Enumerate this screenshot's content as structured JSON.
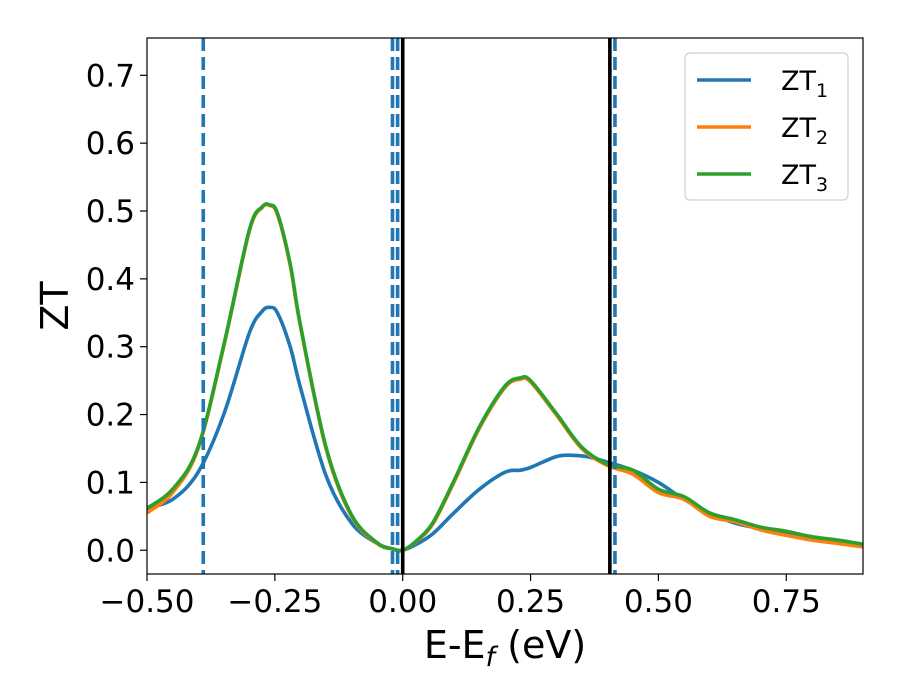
{
  "chart_data": {
    "type": "line",
    "title": "",
    "xlabel": "E-E",
    "xlabel_sub": "f",
    "xlabel_unit": " (eV)",
    "ylabel": "ZT",
    "xlim": [
      -0.5,
      0.9
    ],
    "ylim": [
      -0.035,
      0.755
    ],
    "xticks": [
      -0.5,
      -0.25,
      0.0,
      0.25,
      0.5,
      0.75
    ],
    "xtick_labels": [
      "−0.50",
      "−0.25",
      "0.00",
      "0.25",
      "0.50",
      "0.75"
    ],
    "yticks": [
      0.0,
      0.1,
      0.2,
      0.3,
      0.4,
      0.5,
      0.6,
      0.7
    ],
    "ytick_labels": [
      "0.0",
      "0.1",
      "0.2",
      "0.3",
      "0.4",
      "0.5",
      "0.6",
      "0.7"
    ],
    "grid": false,
    "legend_position": "top-right",
    "vlines_solid": [
      0.0,
      0.405
    ],
    "vlines_dashed": [
      -0.39,
      -0.02,
      -0.01,
      0.415
    ],
    "vline_solid_color": "#000000",
    "vline_dashed_color": "#1f77b4",
    "series": [
      {
        "name": "ZT",
        "name_sub": "1",
        "color": "#1f77b4",
        "x": [
          -0.5,
          -0.45,
          -0.4,
          -0.35,
          -0.3,
          -0.275,
          -0.26,
          -0.245,
          -0.22,
          -0.2,
          -0.15,
          -0.1,
          -0.05,
          -0.02,
          0.0,
          0.03,
          0.06,
          0.1,
          0.15,
          0.2,
          0.23,
          0.25,
          0.3,
          0.33,
          0.36,
          0.4,
          0.45,
          0.5,
          0.55,
          0.6,
          0.65,
          0.7,
          0.75,
          0.8,
          0.85,
          0.9
        ],
        "y": [
          0.062,
          0.075,
          0.115,
          0.2,
          0.32,
          0.352,
          0.358,
          0.35,
          0.3,
          0.24,
          0.11,
          0.04,
          0.01,
          0.002,
          0.0,
          0.01,
          0.025,
          0.055,
          0.09,
          0.115,
          0.118,
          0.122,
          0.138,
          0.14,
          0.138,
          0.13,
          0.118,
          0.1,
          0.075,
          0.055,
          0.04,
          0.032,
          0.025,
          0.018,
          0.012,
          0.008
        ]
      },
      {
        "name": "ZT",
        "name_sub": "2",
        "color": "#ff7f0e",
        "x": [
          -0.5,
          -0.45,
          -0.4,
          -0.35,
          -0.3,
          -0.275,
          -0.26,
          -0.245,
          -0.22,
          -0.2,
          -0.15,
          -0.1,
          -0.05,
          -0.02,
          0.0,
          0.03,
          0.06,
          0.1,
          0.15,
          0.2,
          0.23,
          0.25,
          0.3,
          0.35,
          0.4,
          0.45,
          0.5,
          0.55,
          0.6,
          0.65,
          0.7,
          0.75,
          0.8,
          0.85,
          0.9
        ],
        "y": [
          0.055,
          0.085,
          0.15,
          0.3,
          0.47,
          0.505,
          0.508,
          0.495,
          0.42,
          0.33,
          0.15,
          0.05,
          0.01,
          0.002,
          0.0,
          0.015,
          0.04,
          0.1,
          0.18,
          0.24,
          0.252,
          0.248,
          0.2,
          0.15,
          0.125,
          0.112,
          0.085,
          0.075,
          0.05,
          0.042,
          0.03,
          0.022,
          0.015,
          0.01,
          0.005
        ]
      },
      {
        "name": "ZT",
        "name_sub": "3",
        "color": "#2ca02c",
        "x": [
          -0.5,
          -0.45,
          -0.4,
          -0.35,
          -0.3,
          -0.275,
          -0.26,
          -0.245,
          -0.22,
          -0.2,
          -0.15,
          -0.1,
          -0.05,
          -0.02,
          0.0,
          0.03,
          0.06,
          0.1,
          0.15,
          0.2,
          0.23,
          0.25,
          0.3,
          0.35,
          0.4,
          0.45,
          0.5,
          0.55,
          0.6,
          0.65,
          0.7,
          0.75,
          0.8,
          0.85,
          0.9
        ],
        "y": [
          0.062,
          0.09,
          0.152,
          0.302,
          0.472,
          0.506,
          0.509,
          0.497,
          0.422,
          0.332,
          0.152,
          0.052,
          0.011,
          0.002,
          0.0,
          0.016,
          0.042,
          0.102,
          0.182,
          0.242,
          0.254,
          0.25,
          0.202,
          0.152,
          0.127,
          0.118,
          0.09,
          0.079,
          0.055,
          0.045,
          0.034,
          0.028,
          0.02,
          0.015,
          0.009
        ]
      }
    ]
  }
}
